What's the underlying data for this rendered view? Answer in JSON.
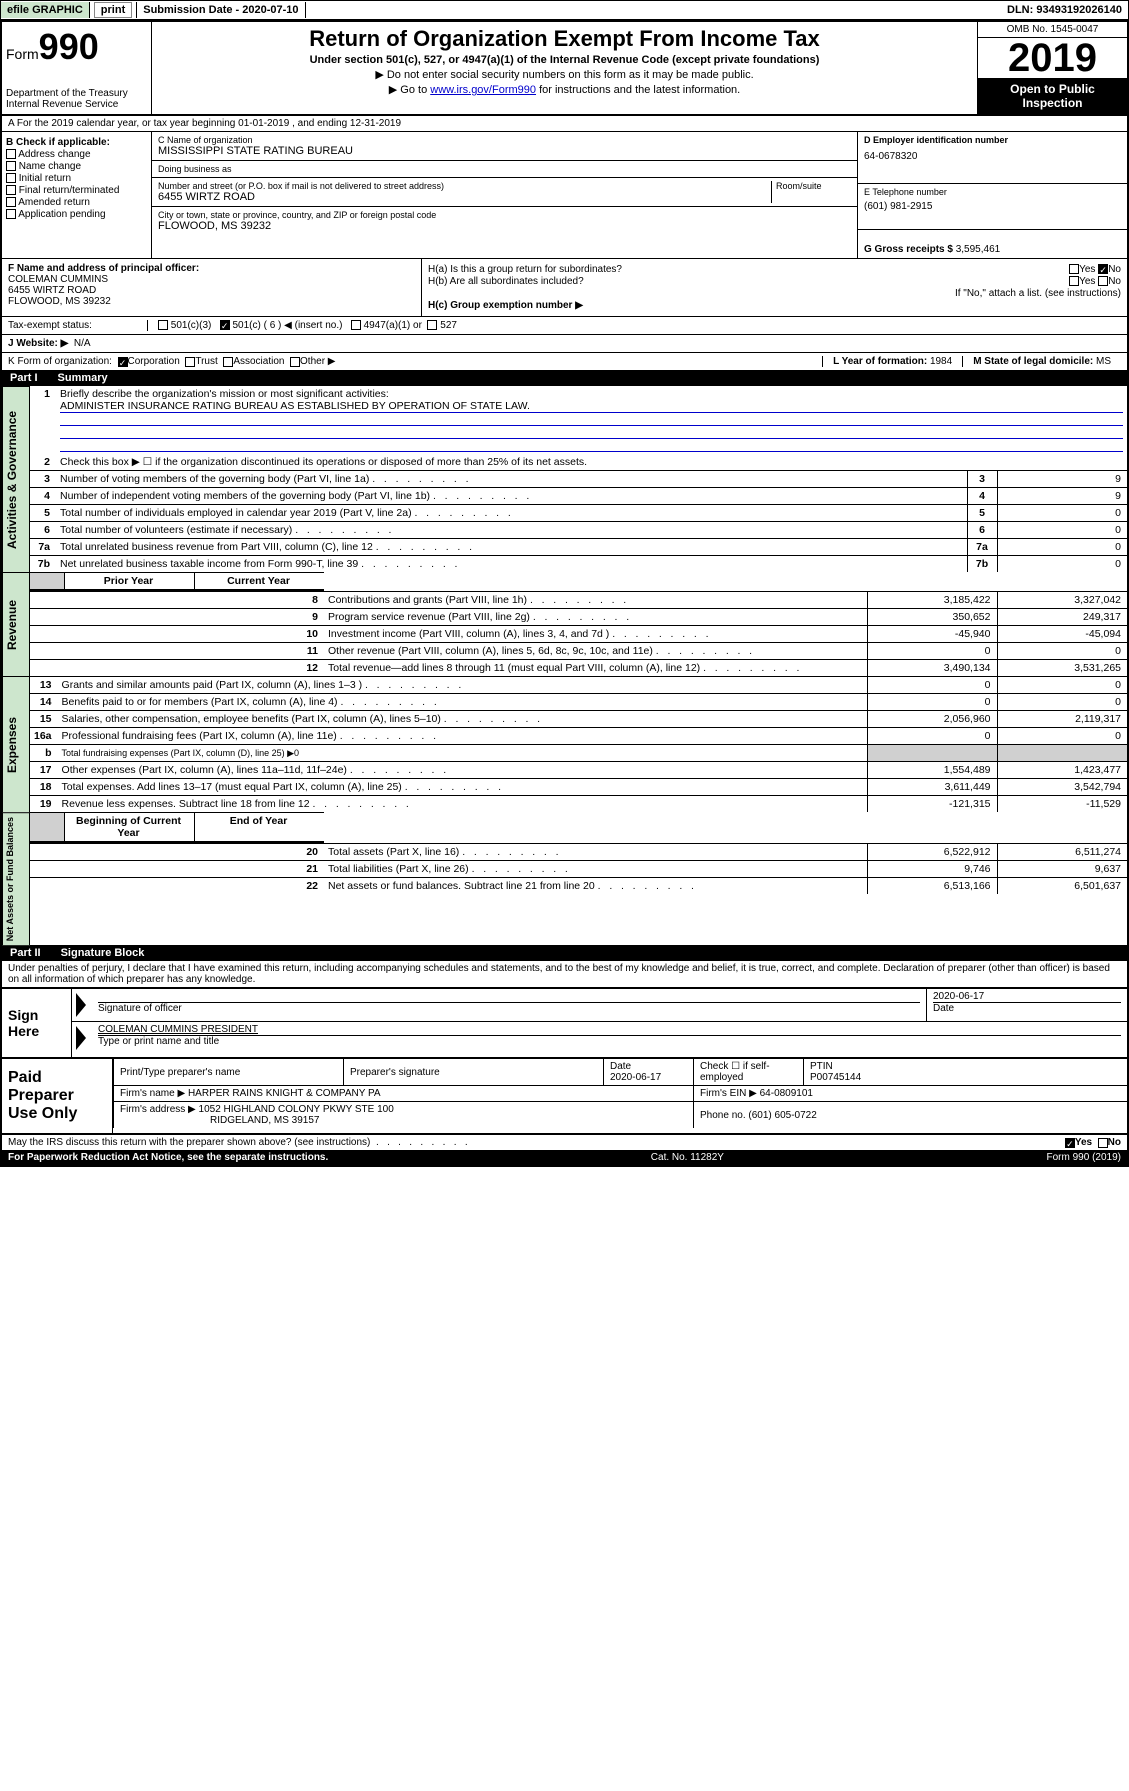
{
  "topbar": {
    "efile": "efile GRAPHIC",
    "print": "print",
    "submission": "Submission Date - 2020-07-10",
    "dln": "DLN: 93493192026140"
  },
  "header": {
    "form_prefix": "Form",
    "form_no": "990",
    "dept1": "Department of the Treasury",
    "dept2": "Internal Revenue Service",
    "title": "Return of Organization Exempt From Income Tax",
    "sub1": "Under section 501(c), 527, or 4947(a)(1) of the Internal Revenue Code (except private foundations)",
    "sub2": "▶ Do not enter social security numbers on this form as it may be made public.",
    "sub3a": "▶ Go to ",
    "sub3link": "www.irs.gov/Form990",
    "sub3b": " for instructions and the latest information.",
    "omb": "OMB No. 1545-0047",
    "year": "2019",
    "open1": "Open to Public",
    "open2": "Inspection"
  },
  "rowA": "A For the 2019 calendar year, or tax year beginning 01-01-2019    , and ending 12-31-2019",
  "colB": {
    "title": "B Check if applicable:",
    "items": [
      "Address change",
      "Name change",
      "Initial return",
      "Final return/terminated",
      "Amended return",
      "Application pending"
    ]
  },
  "colC": {
    "name_lbl": "C Name of organization",
    "name": "MISSISSIPPI STATE RATING BUREAU",
    "dba_lbl": "Doing business as",
    "dba": "",
    "addr_lbl": "Number and street (or P.O. box if mail is not delivered to street address)",
    "room_lbl": "Room/suite",
    "addr": "6455 WIRTZ ROAD",
    "city_lbl": "City or town, state or province, country, and ZIP or foreign postal code",
    "city": "FLOWOOD, MS  39232"
  },
  "colDE": {
    "d_lbl": "D Employer identification number",
    "d_val": "64-0678320",
    "e_lbl": "E Telephone number",
    "e_val": "(601) 981-2915",
    "g_lbl": "G Gross receipts $",
    "g_val": "3,595,461"
  },
  "colF": {
    "lbl": "F  Name and address of principal officer:",
    "l1": "COLEMAN CUMMINS",
    "l2": "6455 WIRTZ ROAD",
    "l3": "FLOWOOD, MS  39232"
  },
  "colH": {
    "ha": "H(a)  Is this a group return for subordinates?",
    "hb": "H(b)  Are all subordinates included?",
    "hb2": "If \"No,\" attach a list. (see instructions)",
    "hc": "H(c)  Group exemption number ▶",
    "yes": "Yes",
    "no": "No"
  },
  "taxrow": {
    "lbl": "Tax-exempt status:",
    "o1": "501(c)(3)",
    "o2": "501(c) ( 6 ) ◀ (insert no.)",
    "o3": "4947(a)(1) or",
    "o4": "527"
  },
  "jrow": {
    "lbl": "J  Website: ▶",
    "val": "N/A"
  },
  "krow": {
    "lbl": "K Form of organization:",
    "o1": "Corporation",
    "o2": "Trust",
    "o3": "Association",
    "o4": "Other ▶",
    "l_lbl": "L Year of formation:",
    "l_val": "1984",
    "m_lbl": "M State of legal domicile:",
    "m_val": "MS"
  },
  "part1": {
    "no": "Part I",
    "title": "Summary"
  },
  "gov_label": "Activities & Governance",
  "rev_label": "Revenue",
  "exp_label": "Expenses",
  "net_label": "Net Assets or Fund Balances",
  "mission_lbl": "Briefly describe the organization's mission or most significant activities:",
  "mission": "ADMINISTER INSURANCE RATING BUREAU AS ESTABLISHED BY OPERATION OF STATE LAW.",
  "line2": "Check this box ▶ ☐  if the organization discontinued its operations or disposed of more than 25% of its net assets.",
  "lines_gov": [
    {
      "n": "3",
      "d": "Number of voting members of the governing body (Part VI, line 1a)",
      "box": "3",
      "v": "9"
    },
    {
      "n": "4",
      "d": "Number of independent voting members of the governing body (Part VI, line 1b)",
      "box": "4",
      "v": "9"
    },
    {
      "n": "5",
      "d": "Total number of individuals employed in calendar year 2019 (Part V, line 2a)",
      "box": "5",
      "v": "0"
    },
    {
      "n": "6",
      "d": "Total number of volunteers (estimate if necessary)",
      "box": "6",
      "v": "0"
    },
    {
      "n": "7a",
      "d": "Total unrelated business revenue from Part VIII, column (C), line 12",
      "box": "7a",
      "v": "0"
    },
    {
      "n": "7b",
      "d": "Net unrelated business taxable income from Form 990-T, line 39",
      "box": "7b",
      "v": "0"
    }
  ],
  "col_hdr": {
    "prior": "Prior Year",
    "current": "Current Year",
    "beg": "Beginning of Current Year",
    "end": "End of Year"
  },
  "lines_rev": [
    {
      "n": "8",
      "d": "Contributions and grants (Part VIII, line 1h)",
      "p": "3,185,422",
      "c": "3,327,042"
    },
    {
      "n": "9",
      "d": "Program service revenue (Part VIII, line 2g)",
      "p": "350,652",
      "c": "249,317"
    },
    {
      "n": "10",
      "d": "Investment income (Part VIII, column (A), lines 3, 4, and 7d )",
      "p": "-45,940",
      "c": "-45,094"
    },
    {
      "n": "11",
      "d": "Other revenue (Part VIII, column (A), lines 5, 6d, 8c, 9c, 10c, and 11e)",
      "p": "0",
      "c": "0"
    },
    {
      "n": "12",
      "d": "Total revenue—add lines 8 through 11 (must equal Part VIII, column (A), line 12)",
      "p": "3,490,134",
      "c": "3,531,265"
    }
  ],
  "lines_exp": [
    {
      "n": "13",
      "d": "Grants and similar amounts paid (Part IX, column (A), lines 1–3 )",
      "p": "0",
      "c": "0"
    },
    {
      "n": "14",
      "d": "Benefits paid to or for members (Part IX, column (A), line 4)",
      "p": "0",
      "c": "0"
    },
    {
      "n": "15",
      "d": "Salaries, other compensation, employee benefits (Part IX, column (A), lines 5–10)",
      "p": "2,056,960",
      "c": "2,119,317"
    },
    {
      "n": "16a",
      "d": "Professional fundraising fees (Part IX, column (A), line 11e)",
      "p": "0",
      "c": "0"
    },
    {
      "n": "b",
      "d": "Total fundraising expenses (Part IX, column (D), line 25) ▶0",
      "p": "",
      "c": "",
      "grey": true
    },
    {
      "n": "17",
      "d": "Other expenses (Part IX, column (A), lines 11a–11d, 11f–24e)",
      "p": "1,554,489",
      "c": "1,423,477"
    },
    {
      "n": "18",
      "d": "Total expenses. Add lines 13–17 (must equal Part IX, column (A), line 25)",
      "p": "3,611,449",
      "c": "3,542,794"
    },
    {
      "n": "19",
      "d": "Revenue less expenses. Subtract line 18 from line 12",
      "p": "-121,315",
      "c": "-11,529"
    }
  ],
  "lines_net": [
    {
      "n": "20",
      "d": "Total assets (Part X, line 16)",
      "p": "6,522,912",
      "c": "6,511,274"
    },
    {
      "n": "21",
      "d": "Total liabilities (Part X, line 26)",
      "p": "9,746",
      "c": "9,637"
    },
    {
      "n": "22",
      "d": "Net assets or fund balances. Subtract line 21 from line 20",
      "p": "6,513,166",
      "c": "6,501,637"
    }
  ],
  "part2": {
    "no": "Part II",
    "title": "Signature Block"
  },
  "perjury": "Under penalties of perjury, I declare that I have examined this return, including accompanying schedules and statements, and to the best of my knowledge and belief, it is true, correct, and complete. Declaration of preparer (other than officer) is based on all information of which preparer has any knowledge.",
  "sign": {
    "here": "Sign Here",
    "date": "2020-06-17",
    "sig_lbl": "Signature of officer",
    "date_lbl": "Date",
    "name": "COLEMAN CUMMINS PRESIDENT",
    "name_lbl": "Type or print name and title"
  },
  "paid": {
    "title": "Paid Preparer Use Only",
    "h1": "Print/Type preparer's name",
    "h2": "Preparer's signature",
    "h3": "Date",
    "h3v": "2020-06-17",
    "h4": "Check ☐ if self-employed",
    "h5": "PTIN",
    "h5v": "P00745144",
    "firm_lbl": "Firm's name     ▶",
    "firm": "HARPER RAINS KNIGHT & COMPANY PA",
    "ein_lbl": "Firm's EIN ▶",
    "ein": "64-0809101",
    "addr_lbl": "Firm's address ▶",
    "addr1": "1052 HIGHLAND COLONY PKWY STE 100",
    "addr2": "RIDGELAND, MS  39157",
    "phone_lbl": "Phone no.",
    "phone": "(601) 605-0722"
  },
  "discuss": "May the IRS discuss this return with the preparer shown above? (see instructions)",
  "footer": {
    "l": "For Paperwork Reduction Act Notice, see the separate instructions.",
    "m": "Cat. No. 11282Y",
    "r": "Form 990 (2019)"
  }
}
